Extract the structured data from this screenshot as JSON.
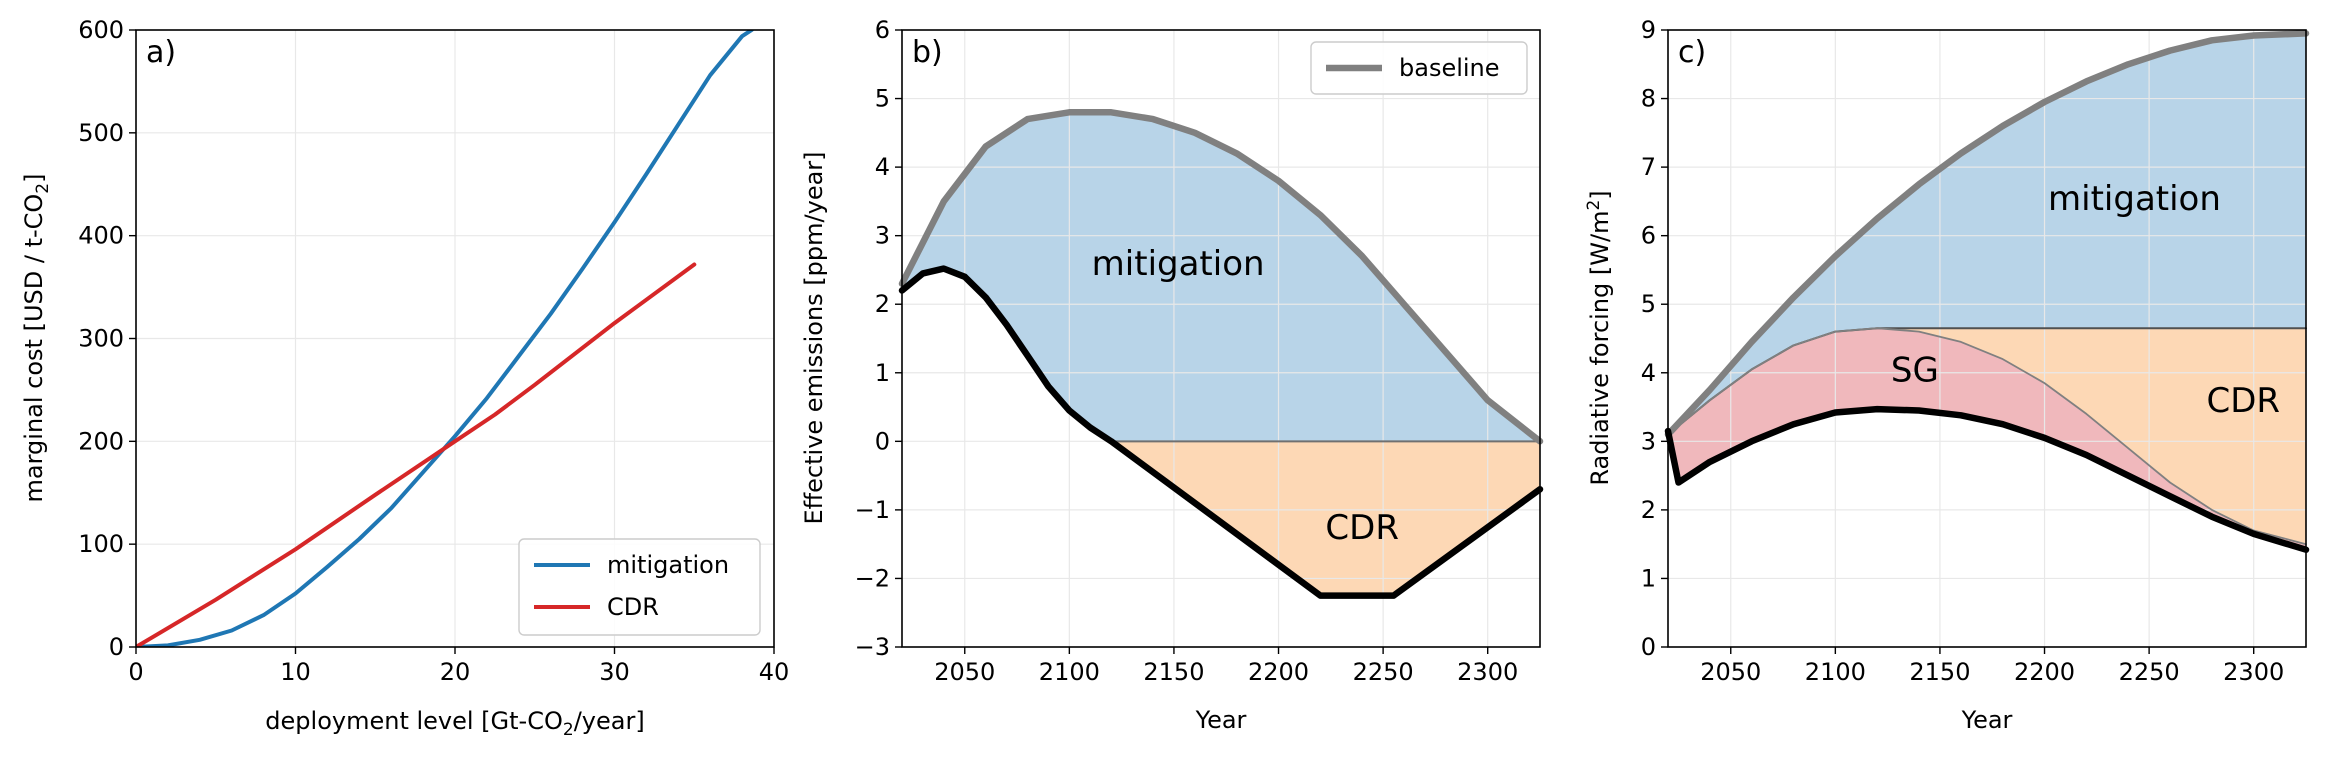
{
  "chart_data": [
    {
      "panel": "a)",
      "type": "line",
      "xlabel": "deployment level [Gt-CO$_2$/year]",
      "ylabel": "marginal cost [USD / t-CO$_2$]",
      "xlabel_text": "deployment level [Gt-CO",
      "xlabel_sub": "2",
      "xlabel_tail": "/year]",
      "ylabel_text": "marginal cost [USD / t-CO",
      "ylabel_sub": "2",
      "ylabel_tail": "]",
      "xlim": [
        0,
        40
      ],
      "ylim": [
        0,
        600
      ],
      "xticks": [
        0,
        10,
        20,
        30,
        40
      ],
      "yticks": [
        0,
        100,
        200,
        300,
        400,
        500,
        600
      ],
      "grid": true,
      "legend_position": "bottom-right",
      "series": [
        {
          "name": "mitigation",
          "color": "#1f77b4",
          "x": [
            0,
            2,
            4,
            6,
            8,
            10,
            12,
            14,
            16,
            18,
            20,
            22,
            24,
            26,
            28,
            30,
            32,
            34,
            36,
            38,
            38.6
          ],
          "y": [
            0,
            1.6,
            7,
            16,
            31,
            52,
            78,
            105,
            135,
            170,
            205,
            242,
            283,
            324,
            368,
            413,
            460,
            508,
            556,
            594,
            600
          ]
        },
        {
          "name": "CDR",
          "color": "#d62728",
          "x": [
            0,
            5,
            10,
            15,
            20,
            22.5,
            25,
            30,
            35
          ],
          "y": [
            0,
            46,
            95,
            148,
            200,
            226,
            255,
            315,
            372
          ]
        }
      ]
    },
    {
      "panel": "b)",
      "type": "area",
      "xlabel": "Year",
      "ylabel": "Effective emissions [ppm/year]",
      "xlim": [
        2020,
        2325
      ],
      "ylim": [
        -3,
        6
      ],
      "xticks": [
        2050,
        2100,
        2150,
        2200,
        2250,
        2300
      ],
      "yticks": [
        -3,
        -2,
        -1,
        0,
        1,
        2,
        3,
        4,
        5,
        6
      ],
      "ytick_labels": [
        "−3",
        "−2",
        "−1",
        "0",
        "1",
        "2",
        "3",
        "4",
        "5",
        "6"
      ],
      "grid": true,
      "legend_position": "top-right",
      "series": [
        {
          "name": "baseline",
          "color": "#808080",
          "x": [
            2020,
            2040,
            2060,
            2080,
            2100,
            2120,
            2140,
            2160,
            2180,
            2200,
            2220,
            2240,
            2260,
            2280,
            2300,
            2325
          ],
          "y": [
            2.3,
            3.5,
            4.3,
            4.7,
            4.8,
            4.8,
            4.7,
            4.5,
            4.2,
            3.8,
            3.3,
            2.7,
            2.0,
            1.3,
            0.6,
            0.0
          ]
        },
        {
          "color": "#000000",
          "x": [
            2020,
            2030,
            2040,
            2050,
            2060,
            2070,
            2080,
            2090,
            2100,
            2110,
            2120,
            2220,
            2255,
            2325
          ],
          "y": [
            2.2,
            2.45,
            2.52,
            2.4,
            2.1,
            1.7,
            1.25,
            0.8,
            0.45,
            0.2,
            0.0,
            -2.25,
            -2.25,
            -0.7
          ]
        }
      ],
      "regions": [
        {
          "label": "mitigation",
          "color": "#b8d4e8",
          "label_x": 2152,
          "label_y": 2.6
        },
        {
          "label": "CDR",
          "color": "#fdd8b5",
          "label_x": 2240,
          "label_y": -1.25
        }
      ]
    },
    {
      "panel": "c)",
      "type": "area",
      "xlabel": "Year",
      "ylabel": "Radiative forcing [W/m$^2$]",
      "ylabel_text": "Radiative forcing [W/m",
      "ylabel_sup": "2",
      "ylabel_tail": "]",
      "xlim": [
        2020,
        2325
      ],
      "ylim": [
        0,
        9
      ],
      "xticks": [
        2050,
        2100,
        2150,
        2200,
        2250,
        2300
      ],
      "yticks": [
        0,
        1,
        2,
        3,
        4,
        5,
        6,
        7,
        8,
        9
      ],
      "grid": true,
      "series": [
        {
          "name": "baseline",
          "color": "#808080",
          "x": [
            2020,
            2040,
            2060,
            2080,
            2100,
            2120,
            2140,
            2160,
            2180,
            2200,
            2220,
            2240,
            2260,
            2280,
            2300,
            2325
          ],
          "y": [
            3.1,
            3.75,
            4.45,
            5.1,
            5.7,
            6.25,
            6.75,
            7.2,
            7.6,
            7.95,
            8.25,
            8.5,
            8.7,
            8.85,
            8.92,
            8.95
          ]
        },
        {
          "color": "#505050",
          "x": [
            2020,
            2040,
            2060,
            2080,
            2100,
            2120,
            2325
          ],
          "y": [
            3.1,
            3.6,
            4.05,
            4.4,
            4.6,
            4.65,
            4.65
          ]
        },
        {
          "color": "#808080",
          "x": [
            2020,
            2040,
            2060,
            2080,
            2100,
            2120,
            2140,
            2160,
            2180,
            2200,
            2220,
            2240,
            2260,
            2280,
            2300,
            2325
          ],
          "y": [
            3.1,
            3.6,
            4.05,
            4.4,
            4.6,
            4.65,
            4.6,
            4.45,
            4.2,
            3.85,
            3.4,
            2.9,
            2.4,
            2.0,
            1.7,
            1.5
          ]
        },
        {
          "color": "#000000",
          "x": [
            2020,
            2025,
            2040,
            2060,
            2080,
            2100,
            2120,
            2140,
            2160,
            2180,
            2200,
            2220,
            2240,
            2260,
            2280,
            2300,
            2325
          ],
          "y": [
            3.15,
            2.4,
            2.7,
            3.0,
            3.25,
            3.42,
            3.47,
            3.45,
            3.38,
            3.25,
            3.05,
            2.8,
            2.5,
            2.2,
            1.9,
            1.65,
            1.42
          ]
        }
      ],
      "regions": [
        {
          "label": "mitigation",
          "color": "#b8d4e8",
          "label_x": 2243,
          "label_y": 6.55
        },
        {
          "label": "SG",
          "color": "#f0b8bc",
          "label_x": 2138,
          "label_y": 4.05
        },
        {
          "label": "CDR",
          "color": "#fdd8b5",
          "label_x": 2295,
          "label_y": 3.6
        }
      ]
    }
  ]
}
